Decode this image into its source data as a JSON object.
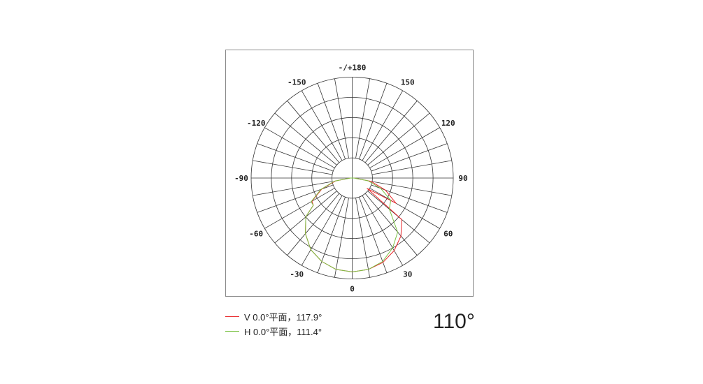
{
  "chart_data": {
    "type": "polar",
    "angle_ticks": [
      "-/+180",
      "150",
      "120",
      "90",
      "60",
      "30",
      "0",
      "-30",
      "-60",
      "-90",
      "-120",
      "-150"
    ],
    "angle_tick_values": [
      180,
      150,
      120,
      90,
      60,
      30,
      0,
      -30,
      -60,
      -90,
      -120,
      -150
    ],
    "angle_grid_step": 10,
    "radial_rings": 5,
    "radial_range": [
      0,
      1
    ],
    "zero_direction": "bottom",
    "grid": true,
    "legend_placement": "bottom-left",
    "series": [
      {
        "name": "V 0.0°平面，117.9°",
        "color": "#e8262a",
        "angles": [
          -90,
          -80,
          -70,
          -60,
          -55,
          -50,
          -40,
          -30,
          -20,
          -10,
          0,
          10,
          20,
          30,
          40,
          50,
          55,
          60,
          70,
          80,
          90
        ],
        "values": [
          0.02,
          0.17,
          0.32,
          0.46,
          0.47,
          0.6,
          0.72,
          0.82,
          0.88,
          0.92,
          0.93,
          0.92,
          0.89,
          0.83,
          0.75,
          0.64,
          0.18,
          0.5,
          0.35,
          0.19,
          0.02
        ]
      },
      {
        "name": "H 0.0°平面，111.4°",
        "color": "#7ac143",
        "angles": [
          -90,
          -80,
          -70,
          -60,
          -55,
          -50,
          -40,
          -30,
          -20,
          -10,
          0,
          10,
          20,
          30,
          40,
          50,
          60,
          70,
          80,
          90
        ],
        "values": [
          0.02,
          0.18,
          0.33,
          0.47,
          0.47,
          0.6,
          0.72,
          0.82,
          0.88,
          0.92,
          0.93,
          0.92,
          0.88,
          0.8,
          0.7,
          0.48,
          0.44,
          0.3,
          0.16,
          0.02
        ]
      }
    ]
  },
  "legend": [
    {
      "label": "V 0.0°平面，117.9°",
      "color": "#e8262a"
    },
    {
      "label": "H 0.0°平面，111.4°",
      "color": "#7ac143"
    }
  ],
  "beam_angle": "110°"
}
